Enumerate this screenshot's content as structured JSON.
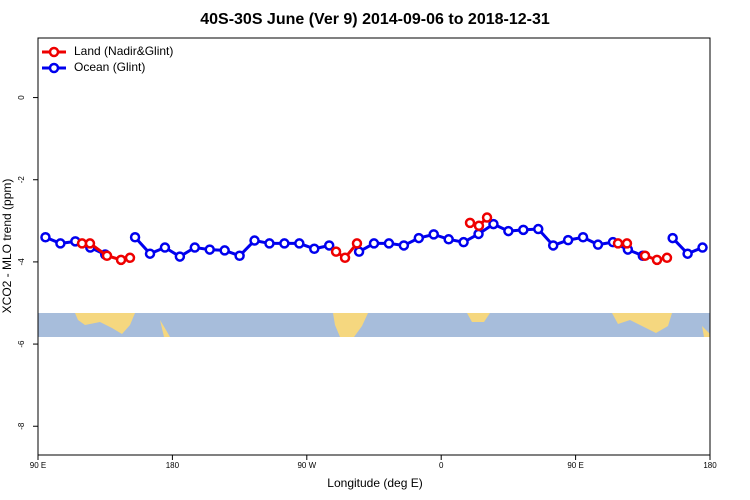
{
  "chart_data": {
    "type": "line",
    "title": "40S-30S June (Ver 9)   2014-09-06 to 2018-12-31",
    "xlabel": "Longitude (deg E)",
    "ylabel": "XCO2 - MLO trend (ppm)",
    "xlim": [
      90,
      540
    ],
    "ylim": [
      -8.7,
      1.45
    ],
    "xticks": [
      {
        "value": 90,
        "label": "90 E"
      },
      180,
      {
        "value": 270,
        "label": "90 W"
      },
      {
        "value": 360,
        "label": "0"
      },
      {
        "value": 450,
        "label": "90 E"
      },
      {
        "value": 540,
        "label": "180"
      }
    ],
    "yticks": [
      0,
      -2,
      -4,
      -6,
      -8
    ],
    "legend": "topleft",
    "series": [
      {
        "name": "Land (Nadir&Glint)",
        "color": "#ee0000",
        "x": [
          119.5,
          124.8,
          136.2,
          145.6,
          151.6,
          null,
          289.6,
          295.6,
          303.6,
          null,
          379.3,
          385.3,
          390.7,
          null,
          478.4,
          484.4,
          null,
          496.5,
          504.5,
          511.2
        ],
        "values": [
          -3.55,
          -3.55,
          -3.85,
          -3.95,
          -3.9,
          null,
          -3.75,
          -3.9,
          -3.55,
          null,
          -3.05,
          -3.12,
          -2.92,
          null,
          -3.55,
          -3.55,
          null,
          -3.85,
          -3.95,
          -3.9
        ]
      },
      {
        "name": "Ocean (Glint)",
        "color": "#0000ee",
        "x": [
          95,
          105,
          115,
          125,
          135,
          145,
          155,
          165,
          175,
          185,
          195,
          205,
          215,
          225,
          235,
          245,
          255,
          265,
          275,
          285,
          295,
          305,
          315,
          325,
          335,
          345,
          355,
          365,
          375,
          385,
          395,
          405,
          415,
          425,
          435,
          445,
          455,
          465,
          475,
          485,
          495,
          505,
          515,
          525,
          535
        ],
        "values": [
          -3.4,
          -3.55,
          -3.5,
          -3.65,
          -3.82,
          null,
          -3.4,
          -3.8,
          -3.65,
          -3.87,
          -3.65,
          -3.7,
          -3.72,
          -3.85,
          -3.48,
          -3.55,
          -3.55,
          -3.55,
          -3.68,
          -3.6,
          null,
          -3.75,
          -3.55,
          -3.55,
          -3.6,
          -3.42,
          -3.33,
          -3.45,
          -3.52,
          -3.32,
          -3.08,
          -3.25,
          -3.22,
          -3.2,
          -3.6,
          -3.47,
          -3.4,
          -3.58,
          -3.52,
          -3.7,
          -3.85,
          null,
          -3.42,
          -3.8,
          -3.65
        ]
      }
    ]
  }
}
